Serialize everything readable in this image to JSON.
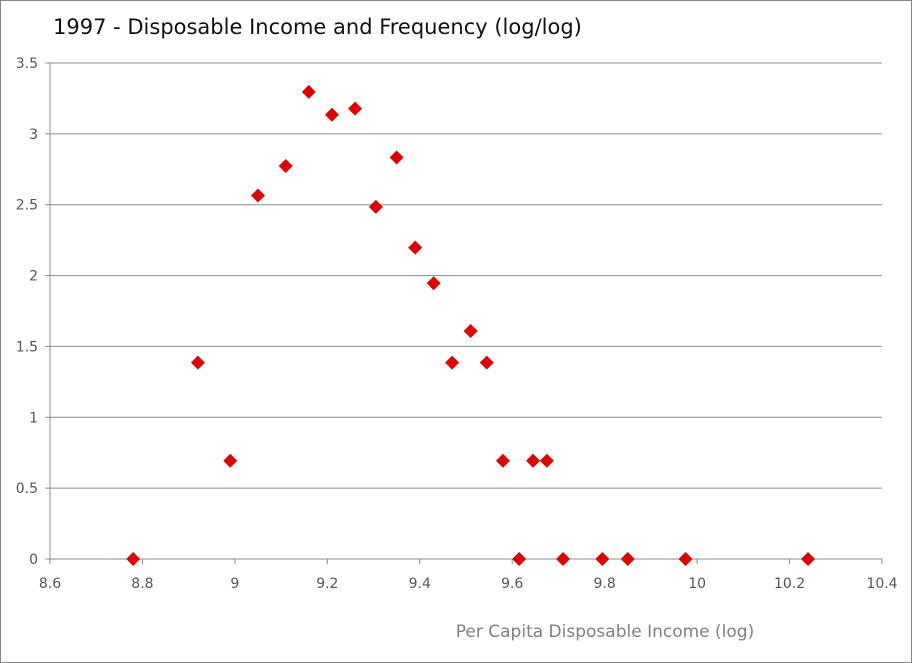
{
  "chart_data": {
    "type": "scatter",
    "title": "1997 - Disposable Income and Frequency  (log/log)",
    "xlabel": "Per Capita Disposable Income (log)",
    "ylabel": "",
    "xlim": [
      8.6,
      10.4
    ],
    "ylim": [
      0,
      3.5
    ],
    "x_ticks": [
      "8.6",
      "8.8",
      "9",
      "9.2",
      "9.4",
      "9.6",
      "9.8",
      "10",
      "10.2",
      "10.4"
    ],
    "y_ticks": [
      "0",
      "0.5",
      "1",
      "1.5",
      "2",
      "2.5",
      "3",
      "3.5"
    ],
    "grid": "horizontal",
    "marker": "diamond",
    "marker_color": "#e00000",
    "series": [
      {
        "points": [
          {
            "x": 8.78,
            "y": 0
          },
          {
            "x": 8.92,
            "y": 1.386
          },
          {
            "x": 8.99,
            "y": 0.693
          },
          {
            "x": 9.05,
            "y": 2.565
          },
          {
            "x": 9.11,
            "y": 2.773
          },
          {
            "x": 9.16,
            "y": 3.296
          },
          {
            "x": 9.21,
            "y": 3.135
          },
          {
            "x": 9.26,
            "y": 3.178
          },
          {
            "x": 9.305,
            "y": 2.485
          },
          {
            "x": 9.35,
            "y": 2.833
          },
          {
            "x": 9.39,
            "y": 2.197
          },
          {
            "x": 9.43,
            "y": 1.946
          },
          {
            "x": 9.47,
            "y": 1.386
          },
          {
            "x": 9.51,
            "y": 1.609
          },
          {
            "x": 9.545,
            "y": 1.386
          },
          {
            "x": 9.58,
            "y": 0.693
          },
          {
            "x": 9.615,
            "y": 0
          },
          {
            "x": 9.645,
            "y": 0.693
          },
          {
            "x": 9.675,
            "y": 0.693
          },
          {
            "x": 9.71,
            "y": 0
          },
          {
            "x": 9.795,
            "y": 0
          },
          {
            "x": 9.85,
            "y": 0
          },
          {
            "x": 9.975,
            "y": 0
          },
          {
            "x": 10.24,
            "y": 0
          }
        ]
      }
    ]
  }
}
